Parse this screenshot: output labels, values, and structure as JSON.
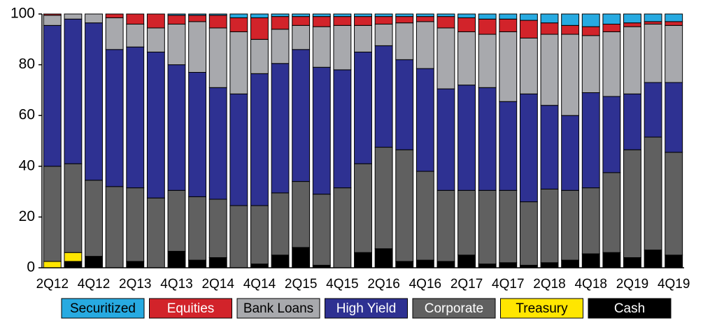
{
  "chart_data": {
    "type": "stacked_bar",
    "categories": [
      "2Q12",
      null,
      "4Q12",
      null,
      "2Q13",
      null,
      "4Q13",
      null,
      "2Q14",
      null,
      "4Q14",
      null,
      "2Q15",
      null,
      "4Q15",
      null,
      "2Q16",
      null,
      "4Q16",
      null,
      "2Q17",
      null,
      "4Q17",
      null,
      "2Q18",
      null,
      "4Q18",
      null,
      "2Q19",
      null,
      "4Q19"
    ],
    "series": [
      {
        "name": "Cash",
        "color": "#000000",
        "values": [
          0,
          2.5,
          4.5,
          0,
          2.5,
          0,
          6.5,
          3,
          4,
          0,
          1.5,
          5,
          8,
          1,
          0,
          6,
          7.5,
          2.5,
          3,
          2.5,
          5,
          1.5,
          2,
          1,
          2,
          3,
          5.5,
          6,
          4,
          7,
          5
        ]
      },
      {
        "name": "Treasury",
        "color": "#ffe600",
        "values": [
          2.5,
          3.5,
          0,
          0,
          0,
          0,
          0,
          0,
          0,
          0,
          0,
          0,
          0,
          0,
          0,
          0,
          0,
          0,
          0,
          0,
          0,
          0,
          0,
          0,
          0,
          0,
          0,
          0,
          0,
          0,
          0
        ]
      },
      {
        "name": "Corporate",
        "color": "#606060",
        "values": [
          37.5,
          35,
          30,
          32,
          29,
          27.5,
          24,
          25,
          23,
          24.5,
          23,
          24.5,
          26,
          28,
          31.5,
          35,
          40,
          44,
          35,
          28,
          25.5,
          29,
          28.5,
          25,
          29,
          27.5,
          26,
          31.5,
          42.5,
          44.5,
          40.5
        ]
      },
      {
        "name": "High Yield",
        "color": "#2e3192",
        "values": [
          55.5,
          57,
          62,
          54,
          55.5,
          57.5,
          49.5,
          49,
          44,
          44,
          52,
          51,
          52,
          50,
          46.5,
          44,
          40,
          35.5,
          40.5,
          40,
          41.5,
          40.5,
          35,
          42.5,
          33,
          29.5,
          37.5,
          30,
          22,
          21.5,
          27.5
        ]
      },
      {
        "name": "Bank Loans",
        "color": "#a8a9ad",
        "values": [
          4,
          2,
          3.5,
          12.5,
          9,
          9.5,
          16,
          20,
          23.5,
          24.5,
          13.5,
          13.5,
          9.5,
          16,
          17.5,
          10.5,
          8.5,
          14.5,
          18.5,
          24,
          21,
          21,
          27.5,
          22,
          28,
          32,
          22.5,
          25.5,
          26.5,
          23,
          22.5
        ]
      },
      {
        "name": "Equities",
        "color": "#d2232a",
        "values": [
          0.5,
          0,
          0,
          1.5,
          4,
          5.5,
          3.5,
          2.5,
          5,
          5.5,
          8.5,
          5,
          3.5,
          4,
          3.5,
          3.5,
          3,
          2.5,
          2,
          4.5,
          5.5,
          6,
          5,
          7,
          4.5,
          3.5,
          3.5,
          3,
          1.5,
          1,
          1.5
        ]
      },
      {
        "name": "Securitized",
        "color": "#27aae1",
        "values": [
          0,
          0,
          0,
          0,
          0,
          0,
          0.5,
          0.5,
          0.5,
          1.5,
          1.5,
          1,
          1,
          1,
          1,
          1,
          1,
          1,
          1,
          1,
          1.5,
          2,
          2,
          2.5,
          3.5,
          4.5,
          5,
          4,
          3.5,
          3,
          3
        ]
      }
    ],
    "ylim": [
      0,
      100
    ],
    "yticks": [
      0,
      20,
      40,
      60,
      80,
      100
    ]
  }
}
